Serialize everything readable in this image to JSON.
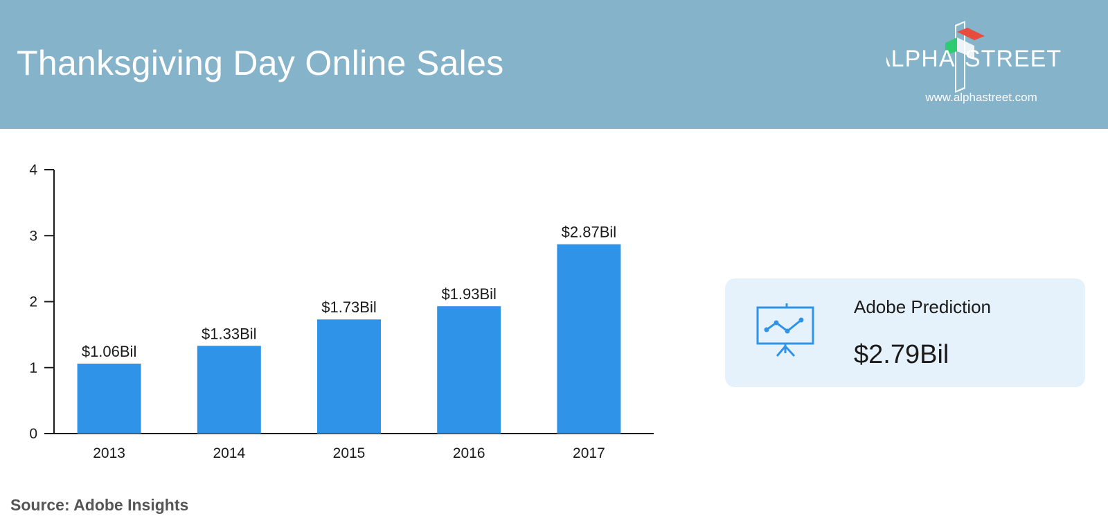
{
  "header": {
    "title": "Thanksgiving Day Online Sales",
    "background": "#85b3ca"
  },
  "brand": {
    "logo_text_left": "ALPHA",
    "logo_text_right": "STREET",
    "url": "www.alphastreet.com"
  },
  "chart_data": {
    "type": "bar",
    "categories": [
      "2013",
      "2014",
      "2015",
      "2016",
      "2017"
    ],
    "values": [
      1.06,
      1.33,
      1.73,
      1.93,
      2.87
    ],
    "data_labels": [
      "$1.06Bil",
      "$1.33Bil",
      "$1.73Bil",
      "$1.93Bil",
      "$2.87Bil"
    ],
    "yticks": [
      "0",
      "1",
      "2",
      "3",
      "4"
    ],
    "ylim": [
      0,
      4
    ],
    "grid": false,
    "bar_color": "#2f93e8"
  },
  "prediction_card": {
    "label": "Adobe Prediction",
    "value": "$2.79Bil",
    "icon": "presentation-chart-icon",
    "background": "#e6f2fb",
    "accent": "#2f93e8"
  },
  "source": "Source: Adobe Insights"
}
